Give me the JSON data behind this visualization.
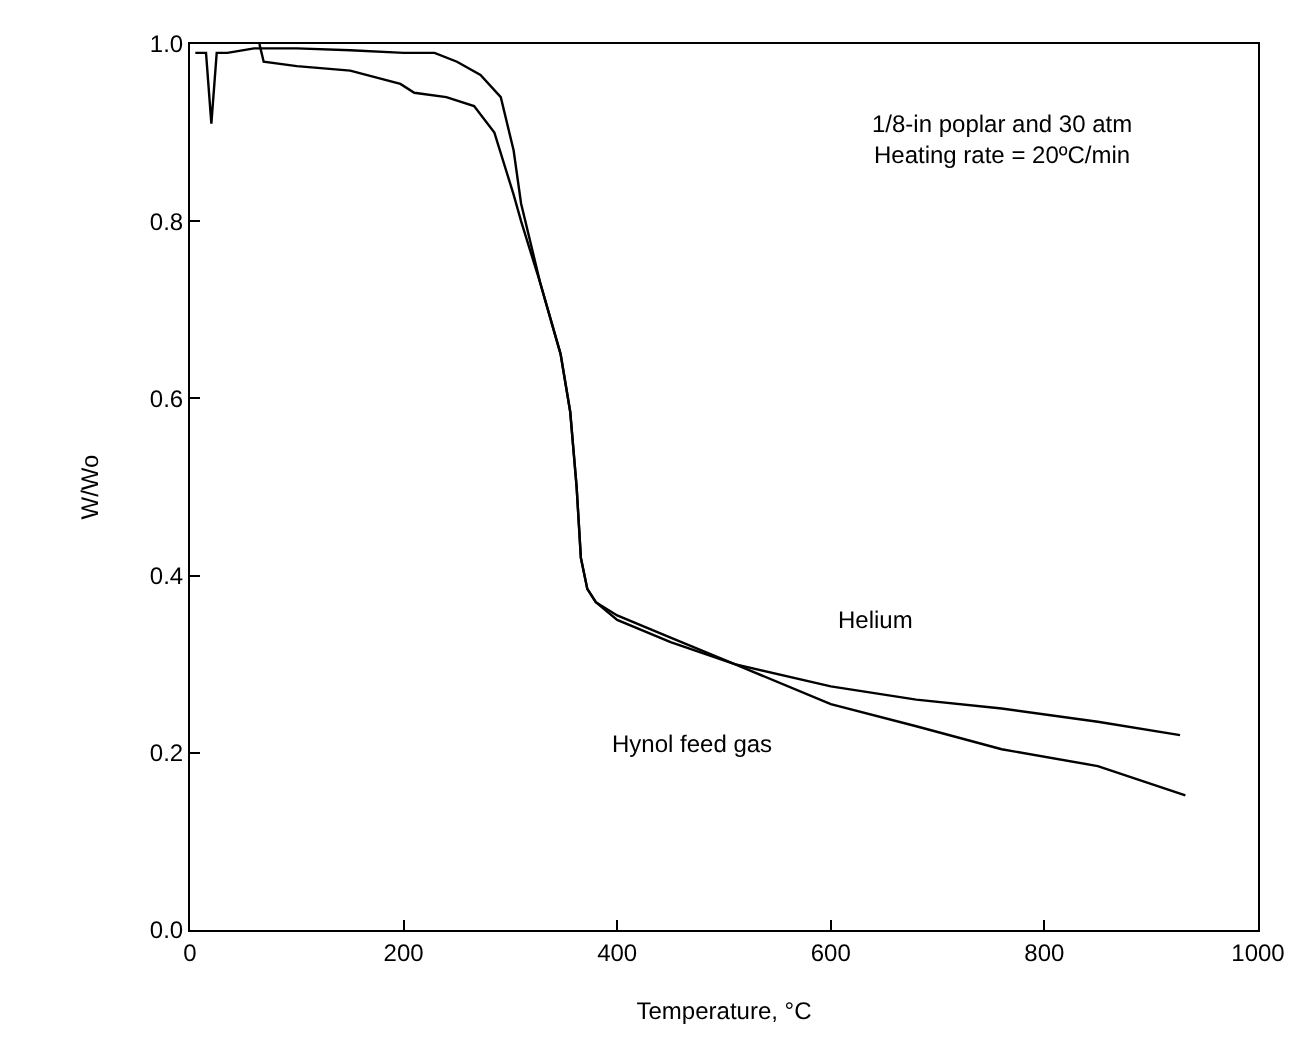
{
  "chart_data": {
    "type": "line",
    "xlabel": "Temperature, °C",
    "ylabel": "W/Wo",
    "xlim": [
      0,
      1000
    ],
    "ylim": [
      0,
      1
    ],
    "xticks": [
      0,
      200,
      400,
      600,
      800,
      1000
    ],
    "yticks": [
      {
        "value": 0,
        "label": "0.0"
      },
      0.2,
      0.4,
      0.6,
      0.8,
      {
        "value": 1,
        "label": "1.0"
      }
    ],
    "grid": false,
    "legend": false,
    "marker": "none",
    "line_style": "solid",
    "annotations": [
      "1/8-in poplar and 30 atm",
      "Heating rate = 20ºC/min"
    ],
    "series": [
      {
        "name": "Helium",
        "color": "#000000",
        "x": [
          5,
          15,
          20,
          25,
          35,
          60,
          100,
          150,
          200,
          229,
          250,
          272,
          291,
          303,
          310,
          328,
          347,
          356,
          362,
          366,
          372,
          380,
          400,
          450,
          510,
          600,
          680,
          760,
          850,
          927
        ],
        "values": [
          0.99,
          0.99,
          0.91,
          0.99,
          0.99,
          0.995,
          0.995,
          0.993,
          0.99,
          0.99,
          0.98,
          0.965,
          0.94,
          0.88,
          0.82,
          0.73,
          0.65,
          0.585,
          0.5,
          0.42,
          0.385,
          0.37,
          0.355,
          0.33,
          0.3,
          0.275,
          0.26,
          0.25,
          0.235,
          0.22
        ]
      },
      {
        "name": "Hynol feed gas",
        "color": "#000000",
        "x": [
          65,
          69,
          100,
          150,
          197,
          210,
          240,
          266,
          285,
          303,
          310,
          328,
          347,
          356,
          362,
          366,
          372,
          380,
          400,
          450,
          510,
          600,
          680,
          760,
          850,
          932
        ],
        "values": [
          1.0,
          0.98,
          0.975,
          0.97,
          0.955,
          0.945,
          0.94,
          0.93,
          0.9,
          0.83,
          0.8,
          0.73,
          0.65,
          0.585,
          0.5,
          0.42,
          0.385,
          0.37,
          0.35,
          0.325,
          0.3,
          0.255,
          0.23,
          0.204,
          0.185,
          0.152
        ]
      }
    ]
  }
}
